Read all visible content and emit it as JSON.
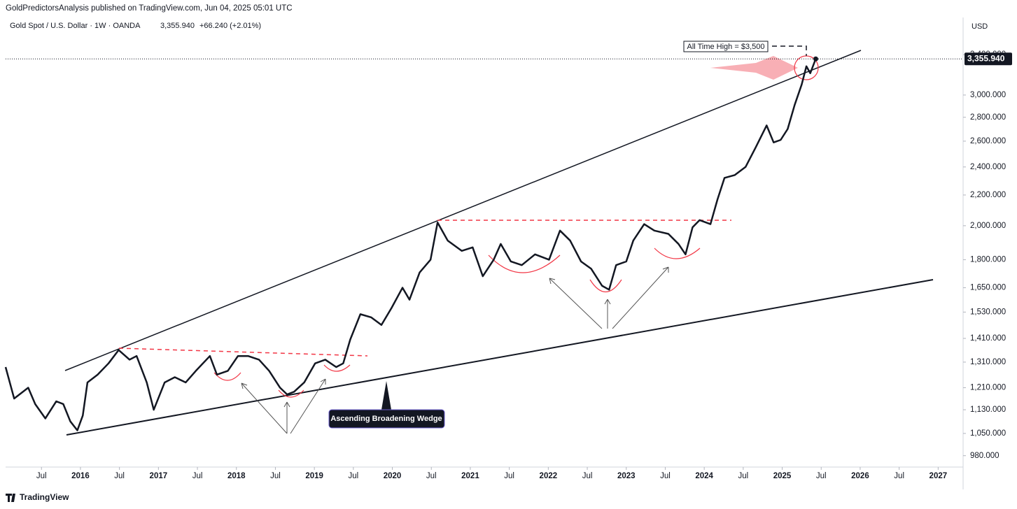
{
  "header": {
    "publisher": "GoldPredictorsAnalysis published on TradingView.com, Jun 04, 2025 05:01 UTC",
    "footer": "TradingView"
  },
  "chart_data": {
    "type": "line",
    "title": "Gold Spot / U.S. Dollar · 1W · OANDA",
    "last_price_label": "3,355.940",
    "change_label": "+66.240 (+2.01%)",
    "currency": "USD",
    "annotations": [
      "All Time High = $3,500",
      "Ascending Broadening Wedge"
    ],
    "log_scale": true,
    "xlim": [
      2015.04,
      2027.32
    ],
    "ylim": [
      946,
      3816
    ],
    "xticks": [
      {
        "value": 2015.5,
        "label": "Jul"
      },
      2016,
      {
        "value": 2016.5,
        "label": "Jul"
      },
      2017,
      {
        "value": 2017.5,
        "label": "Jul"
      },
      2018,
      {
        "value": 2018.5,
        "label": "Jul"
      },
      2019,
      {
        "value": 2019.5,
        "label": "Jul"
      },
      2020,
      {
        "value": 2020.5,
        "label": "Jul"
      },
      2021,
      {
        "value": 2021.5,
        "label": "Jul"
      },
      2022,
      {
        "value": 2022.5,
        "label": "Jul"
      },
      2023,
      {
        "value": 2023.5,
        "label": "Jul"
      },
      2024,
      {
        "value": 2024.5,
        "label": "Jul"
      },
      2025,
      {
        "value": 2025.5,
        "label": "Jul"
      },
      2026,
      {
        "value": 2026.5,
        "label": "Jul"
      },
      2027
    ],
    "yticks": [
      {
        "value": 980,
        "label": "980.000"
      },
      {
        "value": 1050,
        "label": "1,050.000"
      },
      {
        "value": 1130,
        "label": "1,130.000"
      },
      {
        "value": 1210,
        "label": "1,210.000"
      },
      {
        "value": 1310,
        "label": "1,310.000"
      },
      {
        "value": 1410,
        "label": "1,410.000"
      },
      {
        "value": 1530,
        "label": "1,530.000"
      },
      {
        "value": 1650,
        "label": "1,650.000"
      },
      {
        "value": 1800,
        "label": "1,800.000"
      },
      {
        "value": 2000,
        "label": "2,000.000"
      },
      {
        "value": 2200,
        "label": "2,200.000"
      },
      {
        "value": 2400,
        "label": "2,400.000"
      },
      {
        "value": 2600,
        "label": "2,600.000"
      },
      {
        "value": 2800,
        "label": "2,800.000"
      },
      {
        "value": 3000,
        "label": "3,000.000"
      },
      {
        "value": 3400,
        "label": "3,400.000"
      }
    ],
    "series": [
      {
        "name": "Gold Spot / U.S. Dollar",
        "color": "#131722",
        "x": [
          2015.04,
          2015.15,
          2015.33,
          2015.42,
          2015.55,
          2015.69,
          2015.78,
          2015.87,
          2015.96,
          2016.03,
          2016.09,
          2016.22,
          2016.36,
          2016.49,
          2016.63,
          2016.72,
          2016.85,
          2016.94,
          2017.08,
          2017.21,
          2017.35,
          2017.48,
          2017.66,
          2017.75,
          2017.89,
          2018.02,
          2018.15,
          2018.29,
          2018.42,
          2018.56,
          2018.65,
          2018.74,
          2018.87,
          2019.01,
          2019.14,
          2019.28,
          2019.37,
          2019.46,
          2019.59,
          2019.73,
          2019.86,
          2019.99,
          2020.13,
          2020.22,
          2020.35,
          2020.49,
          2020.58,
          2020.71,
          2020.89,
          2021.03,
          2021.16,
          2021.3,
          2021.39,
          2021.52,
          2021.66,
          2021.83,
          2022.01,
          2022.15,
          2022.28,
          2022.42,
          2022.55,
          2022.69,
          2022.78,
          2022.87,
          2023.0,
          2023.09,
          2023.23,
          2023.36,
          2023.54,
          2023.67,
          2023.76,
          2023.85,
          2023.94,
          2024.08,
          2024.17,
          2024.26,
          2024.39,
          2024.53,
          2024.66,
          2024.8,
          2024.89,
          2024.98,
          2025.07,
          2025.16,
          2025.25,
          2025.31,
          2025.36,
          2025.43
        ],
        "values": [
          1290,
          1170,
          1210,
          1150,
          1100,
          1160,
          1150,
          1090,
          1060,
          1110,
          1230,
          1260,
          1305,
          1360,
          1320,
          1335,
          1230,
          1130,
          1230,
          1250,
          1230,
          1275,
          1335,
          1260,
          1275,
          1335,
          1335,
          1320,
          1275,
          1210,
          1185,
          1195,
          1230,
          1305,
          1320,
          1290,
          1305,
          1405,
          1520,
          1505,
          1470,
          1550,
          1650,
          1590,
          1730,
          1800,
          2020,
          1910,
          1850,
          1870,
          1710,
          1800,
          1890,
          1790,
          1770,
          1830,
          1800,
          1970,
          1910,
          1790,
          1750,
          1660,
          1640,
          1770,
          1790,
          1910,
          2010,
          1970,
          1950,
          1890,
          1830,
          1990,
          2035,
          2010,
          2170,
          2320,
          2340,
          2400,
          2550,
          2730,
          2590,
          2610,
          2700,
          2910,
          3100,
          3280,
          3210,
          3355.94
        ]
      }
    ]
  }
}
